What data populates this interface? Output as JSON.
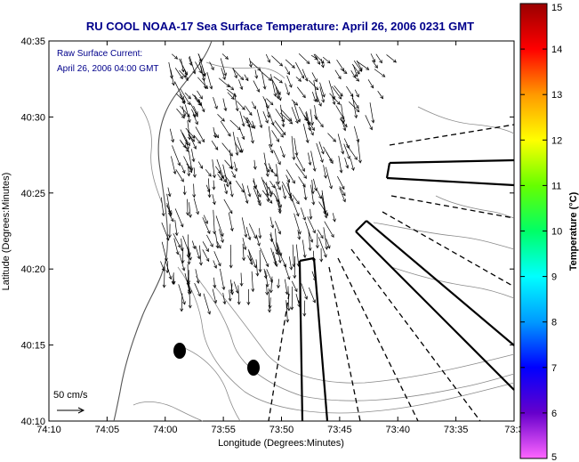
{
  "title": "RU COOL  NOAA-17  Sea Surface Temperature:  April 26, 2006 0231 GMT",
  "current_label": "Raw Surface Current:",
  "current_time": "April 26, 2006 04:00 GMT",
  "scale_label": "50 cm/s",
  "xlabel": "Longitude (Degrees:Minutes)",
  "ylabel": "Latitude (Degrees:Minutes)",
  "x_ticks": [
    "74:10",
    "74:05",
    "74:00",
    "73:55",
    "73:50",
    "73:45",
    "73:40",
    "73:35",
    "73:3"
  ],
  "y_ticks": [
    "40:35",
    "40:30",
    "40:25",
    "40:20",
    "40:15",
    "40:10"
  ],
  "colorbar": {
    "label": "Temperature (°C)",
    "ticks": [
      "15",
      "14",
      "13",
      "12",
      "11",
      "10",
      "9",
      "8",
      "7",
      "6",
      "5"
    ],
    "range": [
      5,
      15
    ],
    "colors": [
      "#ff66ff",
      "#6600cc",
      "#0000ff",
      "#0099ff",
      "#00ffff",
      "#00ff66",
      "#66ff00",
      "#ffff00",
      "#ff9900",
      "#ff0000",
      "#990000"
    ]
  }
}
